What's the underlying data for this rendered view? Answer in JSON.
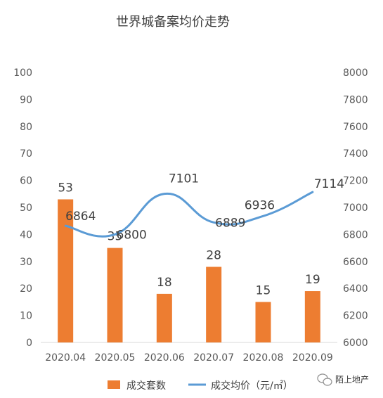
{
  "chart_data": {
    "type": "bar+line",
    "title": "世界城备案均价走势",
    "categories": [
      "2020.04",
      "2020.05",
      "2020.06",
      "2020.07",
      "2020.08",
      "2020.09"
    ],
    "series": [
      {
        "name": "成交套数",
        "type": "bar",
        "axis": "left",
        "color": "#ED7D31",
        "values": [
          53,
          35,
          18,
          28,
          15,
          19
        ]
      },
      {
        "name": "成交均价（元/㎡）",
        "type": "line",
        "axis": "right",
        "color": "#5B9BD5",
        "values": [
          6864,
          6800,
          7101,
          6889,
          6936,
          7114
        ]
      }
    ],
    "y_left": {
      "min": 0,
      "max": 100,
      "ticks": [
        0,
        10,
        20,
        30,
        40,
        50,
        60,
        70,
        80,
        90,
        100
      ]
    },
    "y_right": {
      "min": 6000,
      "max": 8000,
      "ticks": [
        6000,
        6200,
        6400,
        6600,
        6800,
        7000,
        7200,
        7400,
        7600,
        7800,
        8000
      ]
    },
    "grid": false,
    "legend_position": "bottom"
  },
  "watermark": {
    "text": "陌上地产"
  }
}
